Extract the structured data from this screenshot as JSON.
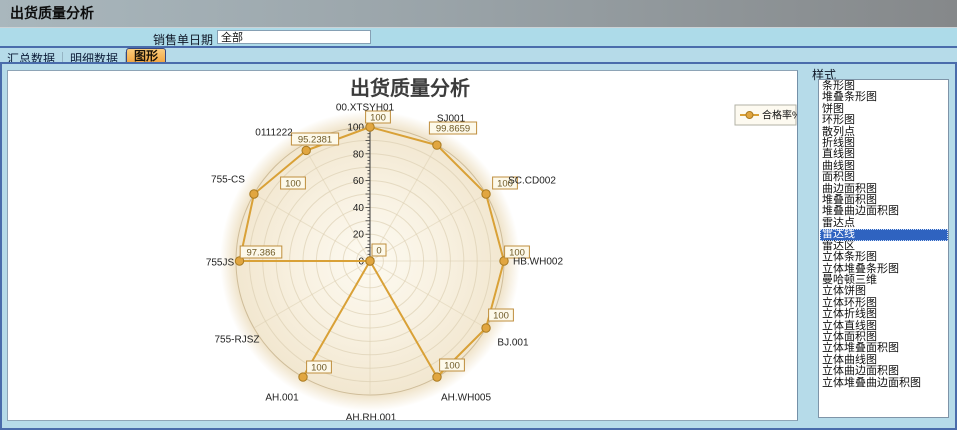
{
  "window": {
    "title": "出货质量分析"
  },
  "filter": {
    "label": "销售单日期",
    "value": "全部"
  },
  "tabs": [
    {
      "label": "汇总数据",
      "active": false
    },
    {
      "label": "明细数据",
      "active": false
    },
    {
      "label": "图形",
      "active": true
    }
  ],
  "style_panel": {
    "title": "样式",
    "selected": "雷达线",
    "options": [
      "条形图",
      "堆叠条形图",
      "饼图",
      "环形图",
      "散列点",
      "折线图",
      "直线图",
      "曲线图",
      "面积图",
      "曲边面积图",
      "堆叠面积图",
      "堆叠曲边面积图",
      "雷达点",
      "雷达线",
      "雷达区",
      "立体条形图",
      "立体堆叠条形图",
      "曼哈顿三维",
      "立体饼图",
      "立体环形图",
      "立体折线图",
      "立体直线图",
      "立体面积图",
      "立体堆叠面积图",
      "立体曲线图",
      "立体曲边面积图",
      "立体堆叠曲边面积图"
    ]
  },
  "chart_data": {
    "type": "line",
    "subtype": "radar-line",
    "title": "出货质量分析",
    "legend": [
      {
        "name": "合格率%"
      }
    ],
    "legend_position": "right",
    "grid": true,
    "categories": [
      "00.XTSYH01",
      "SJ001",
      "SC.CD002",
      "HB.WH002",
      "BJ.001",
      "AH.WH005",
      "AH.RH.001",
      "AH.001",
      "755-RJSZ",
      "755JS",
      "755-CS",
      "0111222"
    ],
    "series": [
      {
        "name": "合格率%",
        "values": [
          100,
          99.8659,
          100,
          100,
          100,
          100,
          0,
          100,
          0,
          97.386,
          100,
          95.2381
        ]
      }
    ],
    "value_labels": [
      "100",
      "99.8659",
      "100",
      "100",
      "100",
      "100",
      "0",
      "100",
      "",
      "97.386",
      "100",
      "95.2381"
    ],
    "axis": {
      "min": 0,
      "max": 100,
      "major_tick": 20,
      "tick_labels": [
        "0",
        "20",
        "40",
        "60",
        "80",
        "100"
      ]
    },
    "colors": {
      "series_line": "#d9a137",
      "marker_fill": "#e1a640",
      "marker_border": "#a97a20",
      "plot_bg_inner": "#fdfaf1",
      "plot_bg_outer": "#eee0c3",
      "grid_line": "#d8cbad",
      "value_box_bg": "#fdf9ea",
      "value_box_border": "#bf8e3d",
      "value_text": "#6f5a26",
      "title_color": "#3c3c3c",
      "selection_bg": "#2f63c0",
      "active_tab": "#f2a844",
      "panel_bg": "#b6dbe9"
    }
  }
}
